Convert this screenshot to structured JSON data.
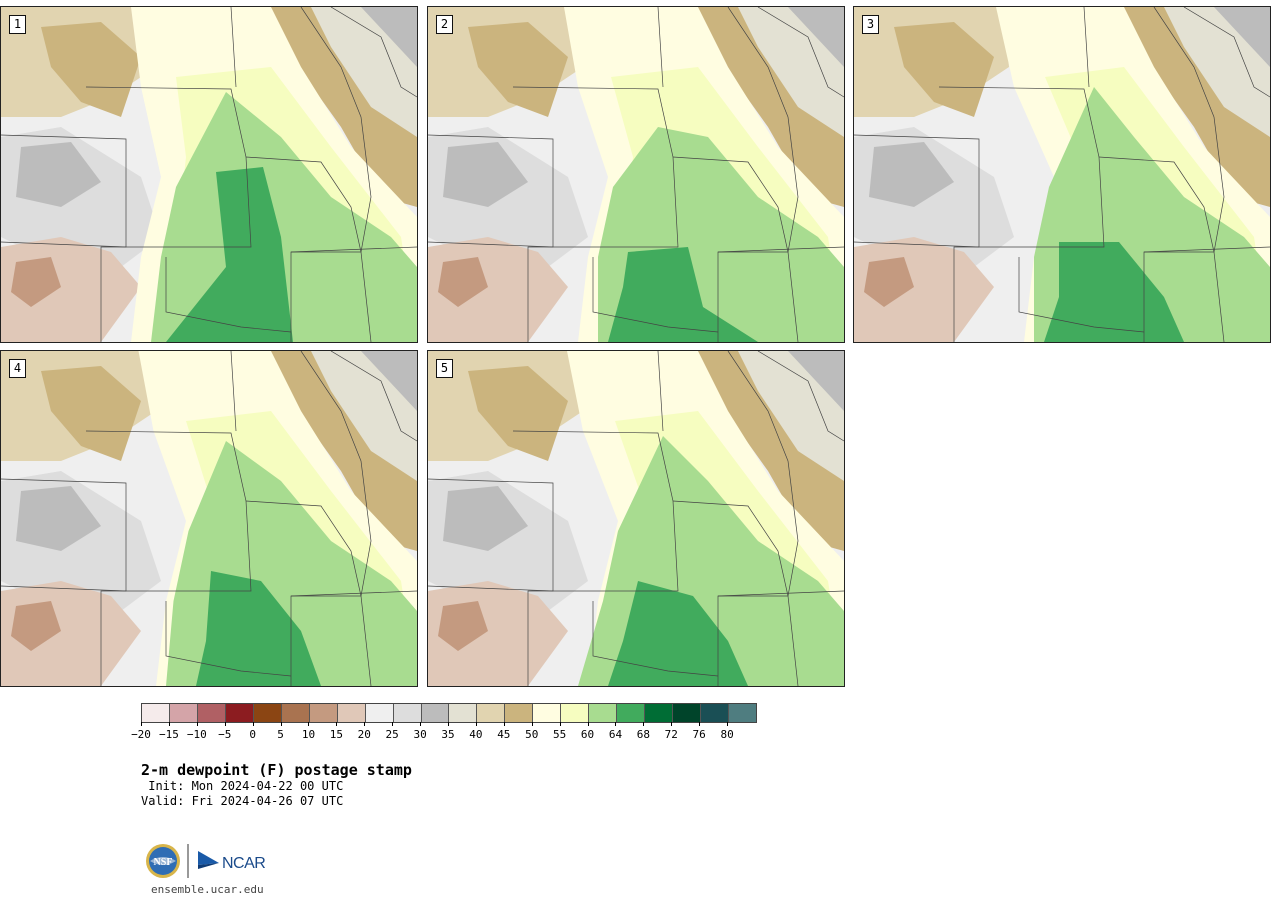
{
  "panels": [
    {
      "number": "1",
      "variant": 0
    },
    {
      "number": "2",
      "variant": 1
    },
    {
      "number": "3",
      "variant": 2
    },
    {
      "number": "4",
      "variant": 3
    },
    {
      "number": "5",
      "variant": 4
    }
  ],
  "colorbar": {
    "colors": [
      "#f5ebeb",
      "#d4a4a8",
      "#b06064",
      "#8c1c20",
      "#8b4513",
      "#a97350",
      "#c49a80",
      "#e0c8b8",
      "#efefef",
      "#dddddd",
      "#bcbcbc",
      "#e3e1d3",
      "#e1d4b0",
      "#cbb47e",
      "#fffde1",
      "#f6fdc0",
      "#a8dc90",
      "#41ab5d",
      "#006d35",
      "#00442a",
      "#1a4f55",
      "#4f7d80"
    ],
    "tick_labels": [
      "−20",
      "−15",
      "−10",
      "−5",
      "0",
      "5",
      "10",
      "15",
      "20",
      "25",
      "30",
      "35",
      "40",
      "45",
      "50",
      "55",
      "60",
      "64",
      "68",
      "72",
      "76",
      "80"
    ]
  },
  "title": "2-m dewpoint (F) postage stamp",
  "init": " Init: Mon 2024-04-22 00 UTC",
  "valid": "Valid: Fri 2024-04-26 07 UTC",
  "logo": {
    "nsf": "NSF",
    "ncar": "NCAR"
  },
  "website": "ensemble.ucar.edu"
}
